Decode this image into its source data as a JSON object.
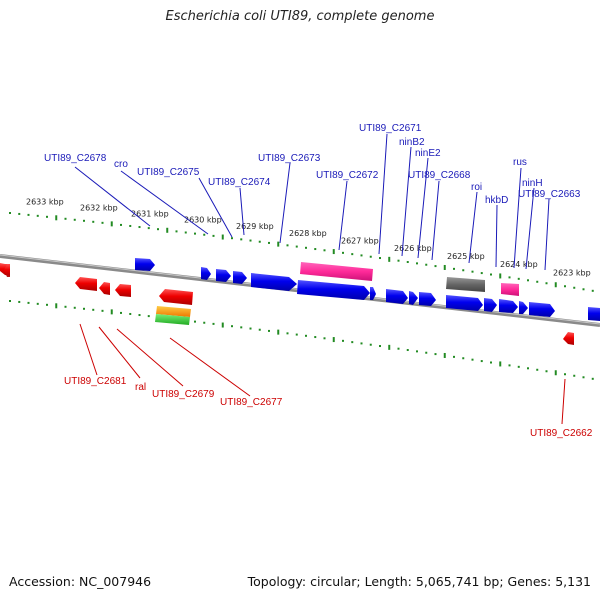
{
  "title": "Escherichia coli UTI89, complete genome",
  "footer": {
    "accession": "Accession: NC_007946",
    "topology": "Topology: circular; Length: 5,065,741 bp; Genes: 5,131"
  },
  "colors": {
    "forward_label": "#1a1ab8",
    "reverse_label": "#cc0000",
    "tick": "#228b22",
    "backbone": "#808080",
    "cds_forward": "#0000ff",
    "cds_reverse": "#ff0000",
    "pseudo": "#ff3399",
    "gray_feature": "#666666",
    "orange_feature": "#ff9900",
    "green_feature": "#33cc33"
  },
  "scale_labels": [
    "2633 kbp",
    "2632 kbp",
    "2631 kbp",
    "2630 kbp",
    "2629 kbp",
    "2628 kbp",
    "2627 kbp",
    "2626 kbp",
    "2625 kbp",
    "2624 kbp",
    "2623 kbp"
  ],
  "forward_genes": [
    "UTI89_C2678",
    "cro",
    "UTI89_C2675",
    "UTI89_C2674",
    "UTI89_C2673",
    "UTI89_C2672",
    "UTI89_C2671",
    "ninB2",
    "ninE2",
    "UTI89_C2668",
    "roi",
    "hkbD",
    "rus",
    "ninH",
    "UTI89_C2663"
  ],
  "reverse_genes": [
    "UTI89_C2681",
    "ral",
    "UTI89_C2679",
    "UTI89_C2677",
    "UTI89_C2662"
  ]
}
